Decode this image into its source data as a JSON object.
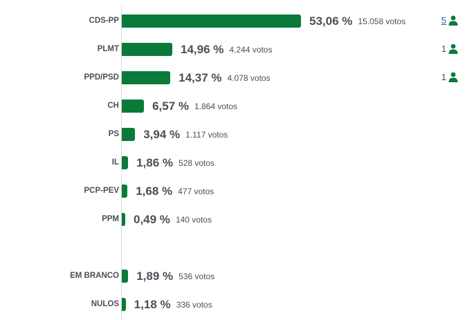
{
  "chart_data": {
    "type": "bar",
    "orientation": "horizontal",
    "bar_color": "#0a7a3a",
    "rows": [
      {
        "label": "CDS-PP",
        "percent": "53,06 %",
        "value": 53.06,
        "votes": "15.058 votos",
        "seats": "5",
        "seats_link": true
      },
      {
        "label": "PLMT",
        "percent": "14,96 %",
        "value": 14.96,
        "votes": "4.244 votos",
        "seats": "1",
        "seats_link": false
      },
      {
        "label": "PPD/PSD",
        "percent": "14,37 %",
        "value": 14.37,
        "votes": "4.078 votos",
        "seats": "1",
        "seats_link": false
      },
      {
        "label": "CH",
        "percent": "6,57 %",
        "value": 6.57,
        "votes": "1.864 votos"
      },
      {
        "label": "PS",
        "percent": "3,94 %",
        "value": 3.94,
        "votes": "1.117 votos"
      },
      {
        "label": "IL",
        "percent": "1,86 %",
        "value": 1.86,
        "votes": "528 votos"
      },
      {
        "label": "PCP-PEV",
        "percent": "1,68 %",
        "value": 1.68,
        "votes": "477 votos"
      },
      {
        "label": "PPM",
        "percent": "0,49 %",
        "value": 0.49,
        "votes": "140 votos"
      },
      {
        "label": "EM BRANCO",
        "percent": "1,89 %",
        "value": 1.89,
        "votes": "536 votos"
      },
      {
        "label": "NULOS",
        "percent": "1,18 %",
        "value": 1.18,
        "votes": "336 votos"
      }
    ]
  }
}
